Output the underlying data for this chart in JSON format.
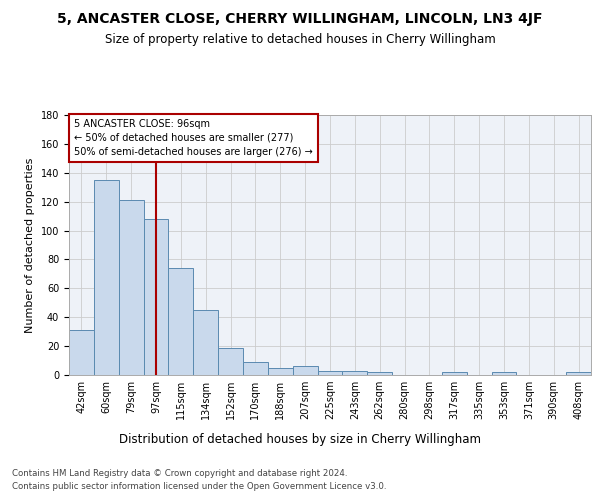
{
  "title": "5, ANCASTER CLOSE, CHERRY WILLINGHAM, LINCOLN, LN3 4JF",
  "subtitle": "Size of property relative to detached houses in Cherry Willingham",
  "xlabel_bottom": "Distribution of detached houses by size in Cherry Willingham",
  "ylabel": "Number of detached properties",
  "categories": [
    "42sqm",
    "60sqm",
    "79sqm",
    "97sqm",
    "115sqm",
    "134sqm",
    "152sqm",
    "170sqm",
    "188sqm",
    "207sqm",
    "225sqm",
    "243sqm",
    "262sqm",
    "280sqm",
    "298sqm",
    "317sqm",
    "335sqm",
    "353sqm",
    "371sqm",
    "390sqm",
    "408sqm"
  ],
  "values": [
    31,
    135,
    121,
    108,
    74,
    45,
    19,
    9,
    5,
    6,
    3,
    3,
    2,
    0,
    0,
    2,
    0,
    2,
    0,
    0,
    2
  ],
  "bar_color": "#c9d9ec",
  "bar_edge_color": "#5a8ab0",
  "vline_x": 3,
  "vline_color": "#aa0000",
  "annotation_text": "5 ANCASTER CLOSE: 96sqm\n← 50% of detached houses are smaller (277)\n50% of semi-detached houses are larger (276) →",
  "annotation_box_color": "white",
  "annotation_box_edge": "#aa0000",
  "ylim": [
    0,
    180
  ],
  "yticks": [
    0,
    20,
    40,
    60,
    80,
    100,
    120,
    140,
    160,
    180
  ],
  "grid_color": "#cccccc",
  "bg_color": "#eef2f8",
  "footer_line1": "Contains HM Land Registry data © Crown copyright and database right 2024.",
  "footer_line2": "Contains public sector information licensed under the Open Government Licence v3.0.",
  "title_fontsize": 10,
  "subtitle_fontsize": 8.5,
  "ylabel_fontsize": 8,
  "tick_fontsize": 7,
  "xlabel_bottom_fontsize": 8.5
}
